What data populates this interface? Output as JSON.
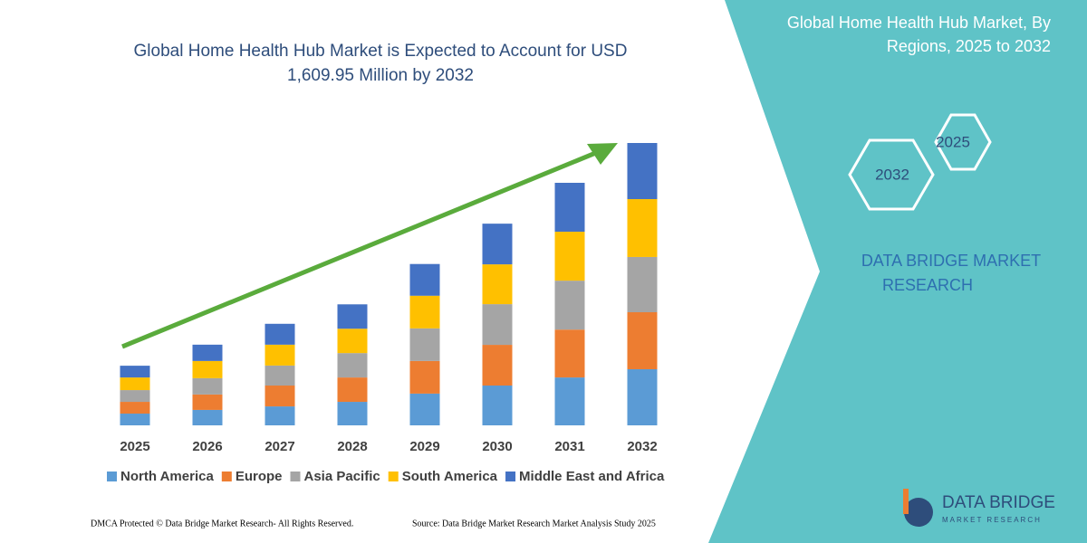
{
  "chart_data": {
    "type": "stacked-bar",
    "title": "Global Home Health Hub Market is Expected to Account for USD",
    "title_line2": "1,609.95 Million by 2032",
    "categories": [
      "2025",
      "2026",
      "2027",
      "2028",
      "2029",
      "2030",
      "2031",
      "2032"
    ],
    "series": [
      {
        "name": "North America",
        "color": "#5b9bd5",
        "values": [
          67,
          88,
          108,
          134,
          181,
          227,
          273,
          320
        ]
      },
      {
        "name": "Europe",
        "color": "#ed7d31",
        "values": [
          67,
          88,
          119,
          139,
          186,
          232,
          273,
          325
        ]
      },
      {
        "name": "Asia Pacific",
        "color": "#a5a5a5",
        "values": [
          67,
          93,
          114,
          139,
          186,
          232,
          279,
          315
        ]
      },
      {
        "name": "South America",
        "color": "#ffc000",
        "values": [
          72,
          98,
          119,
          139,
          186,
          227,
          279,
          330
        ]
      },
      {
        "name": "Middle East and Africa",
        "color": "#4472c4",
        "values": [
          67,
          93,
          119,
          139,
          181,
          232,
          279,
          320
        ]
      }
    ]
  },
  "side_panel": {
    "title_line1": "Global Home Health Hub Market, By",
    "title_line2": "Regions, 2025 to 2032",
    "hex_top": "2025",
    "hex_bottom": "2032",
    "brand_line1": "DATA BRIDGE MARKET",
    "brand_line2": "RESEARCH"
  },
  "logo": {
    "name": "DATA BRIDGE",
    "tagline": "MARKET RESEARCH"
  },
  "footer": {
    "left": "DMCA Protected © Data Bridge Market Research-  All Rights Reserved.",
    "right": "Source: Data Bridge Market Research  Market Analysis Study 2025"
  }
}
